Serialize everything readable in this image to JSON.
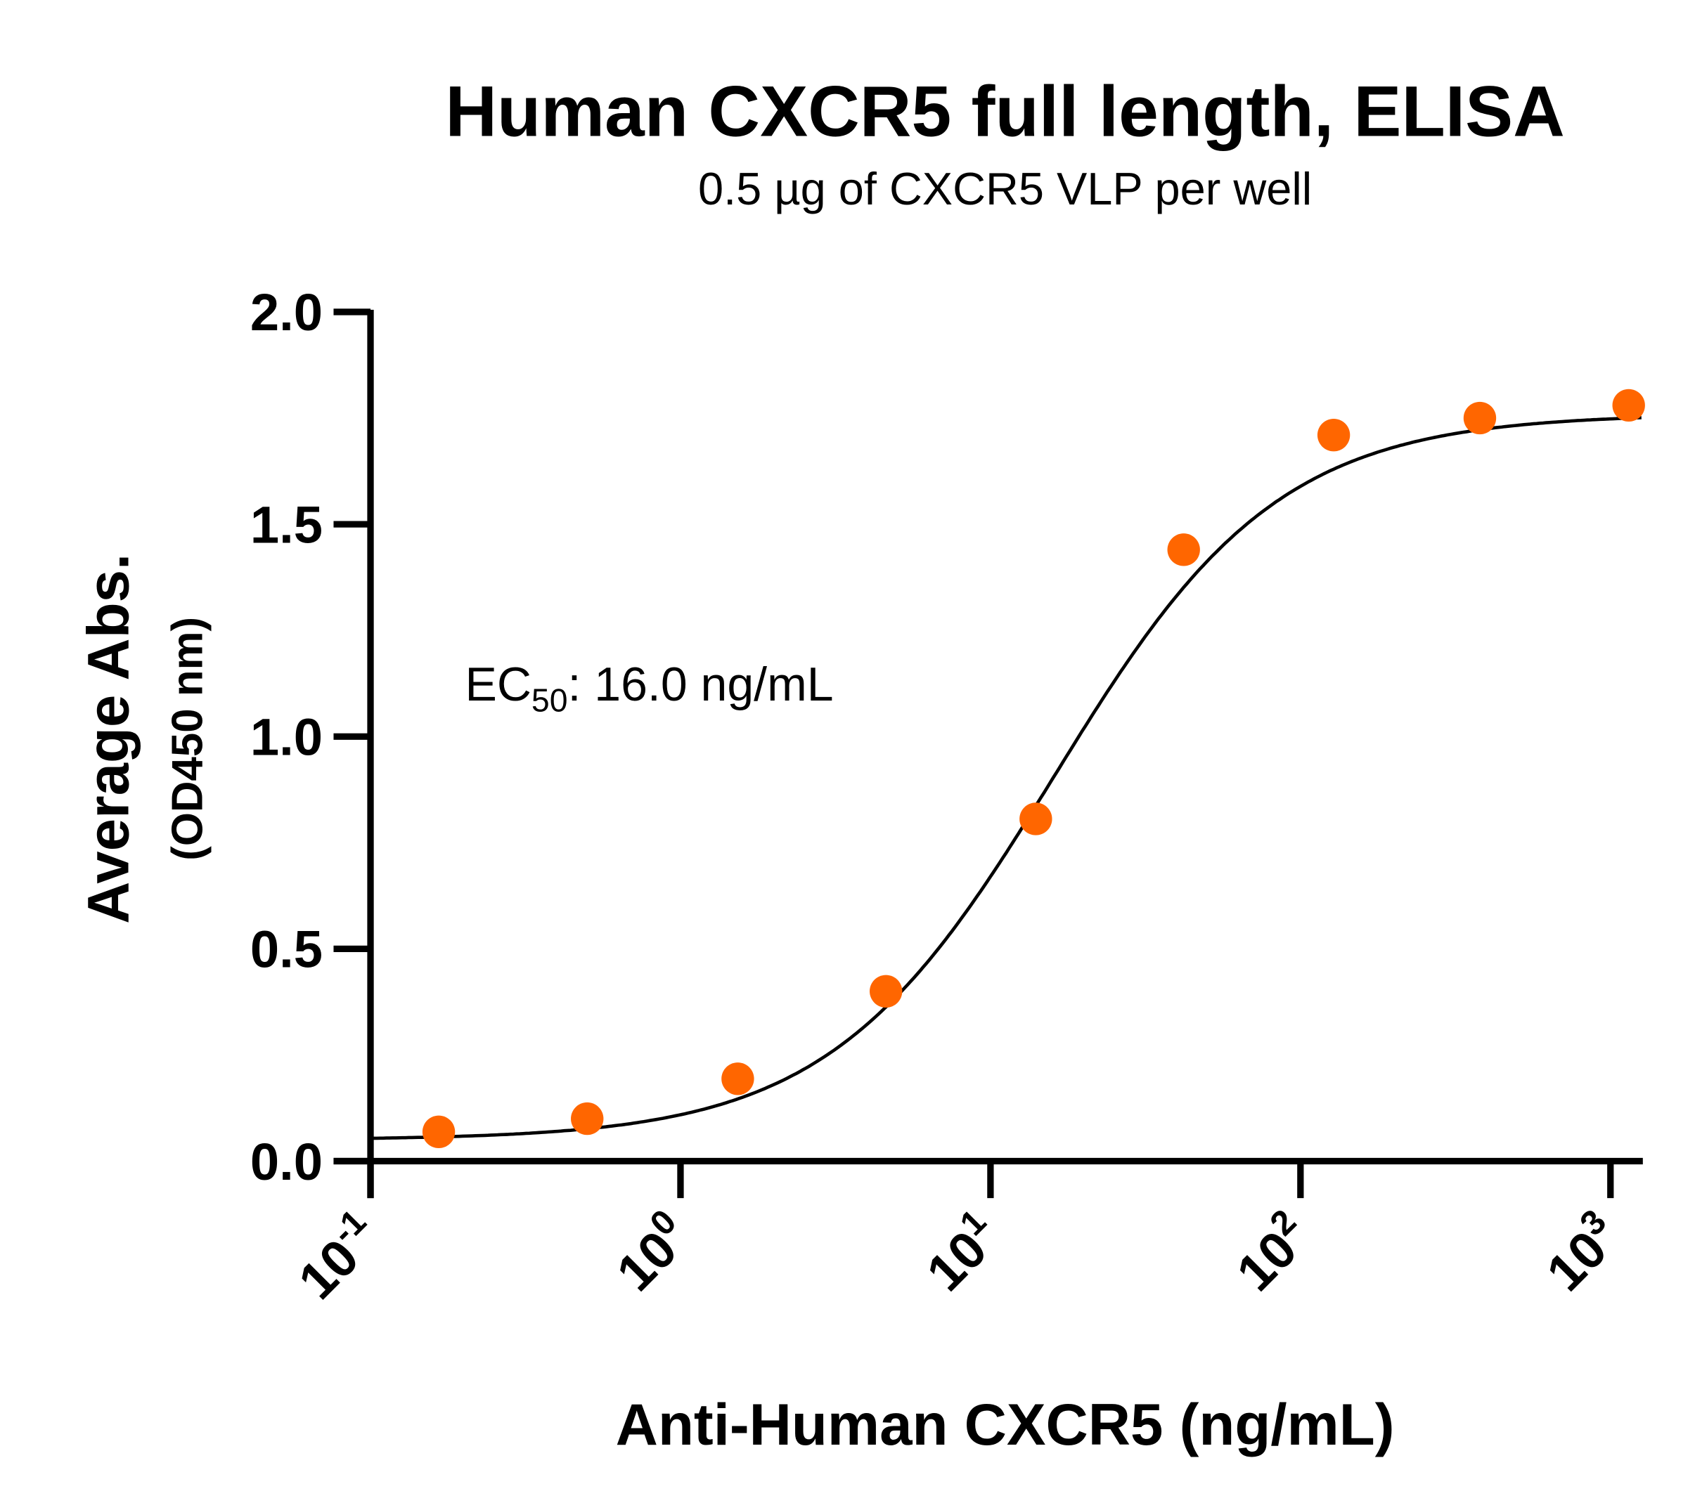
{
  "chart_data": {
    "type": "scatter",
    "title": "Human CXCR5 full length, ELISA",
    "subtitle": "0.5 µg of CXCR5 VLP per well",
    "xlabel": "Anti-Human CXCR5 (ng/mL)",
    "ylabel": "Average Abs.",
    "ylabel_sub": "(OD450 nm)",
    "xscale": "log",
    "xlim": [
      0.1,
      1300
    ],
    "ylim": [
      0,
      2.0
    ],
    "yticks": [
      0.0,
      0.5,
      1.0,
      1.5,
      2.0
    ],
    "ytick_labels": [
      "0.0",
      "0.5",
      "1.0",
      "1.5",
      "2.0"
    ],
    "xticks": [
      0.1,
      1,
      10,
      100,
      1000
    ],
    "xtick_labels": [
      {
        "base": "10",
        "exp": "-1"
      },
      {
        "base": "10",
        "exp": "0"
      },
      {
        "base": "10",
        "exp": "1"
      },
      {
        "base": "10",
        "exp": "2"
      },
      {
        "base": "10",
        "exp": "3"
      }
    ],
    "grid": false,
    "series": [
      {
        "name": "Anti-Human CXCR5",
        "color": "#ff6600",
        "x": [
          0.166,
          0.5,
          1.53,
          4.6,
          14,
          42,
          128,
          379,
          1145
        ],
        "y": [
          0.069,
          0.1,
          0.194,
          0.4,
          0.806,
          1.44,
          1.71,
          1.75,
          1.78
        ]
      }
    ],
    "fit": {
      "model": "4PL",
      "bottom": 0.05,
      "top": 1.76,
      "ec50": 16.0,
      "hill": 1.2,
      "color": "#000000"
    },
    "annotation": {
      "prefix": "EC",
      "sub": "50",
      "suffix": ": 16.0 ng/mL"
    }
  }
}
